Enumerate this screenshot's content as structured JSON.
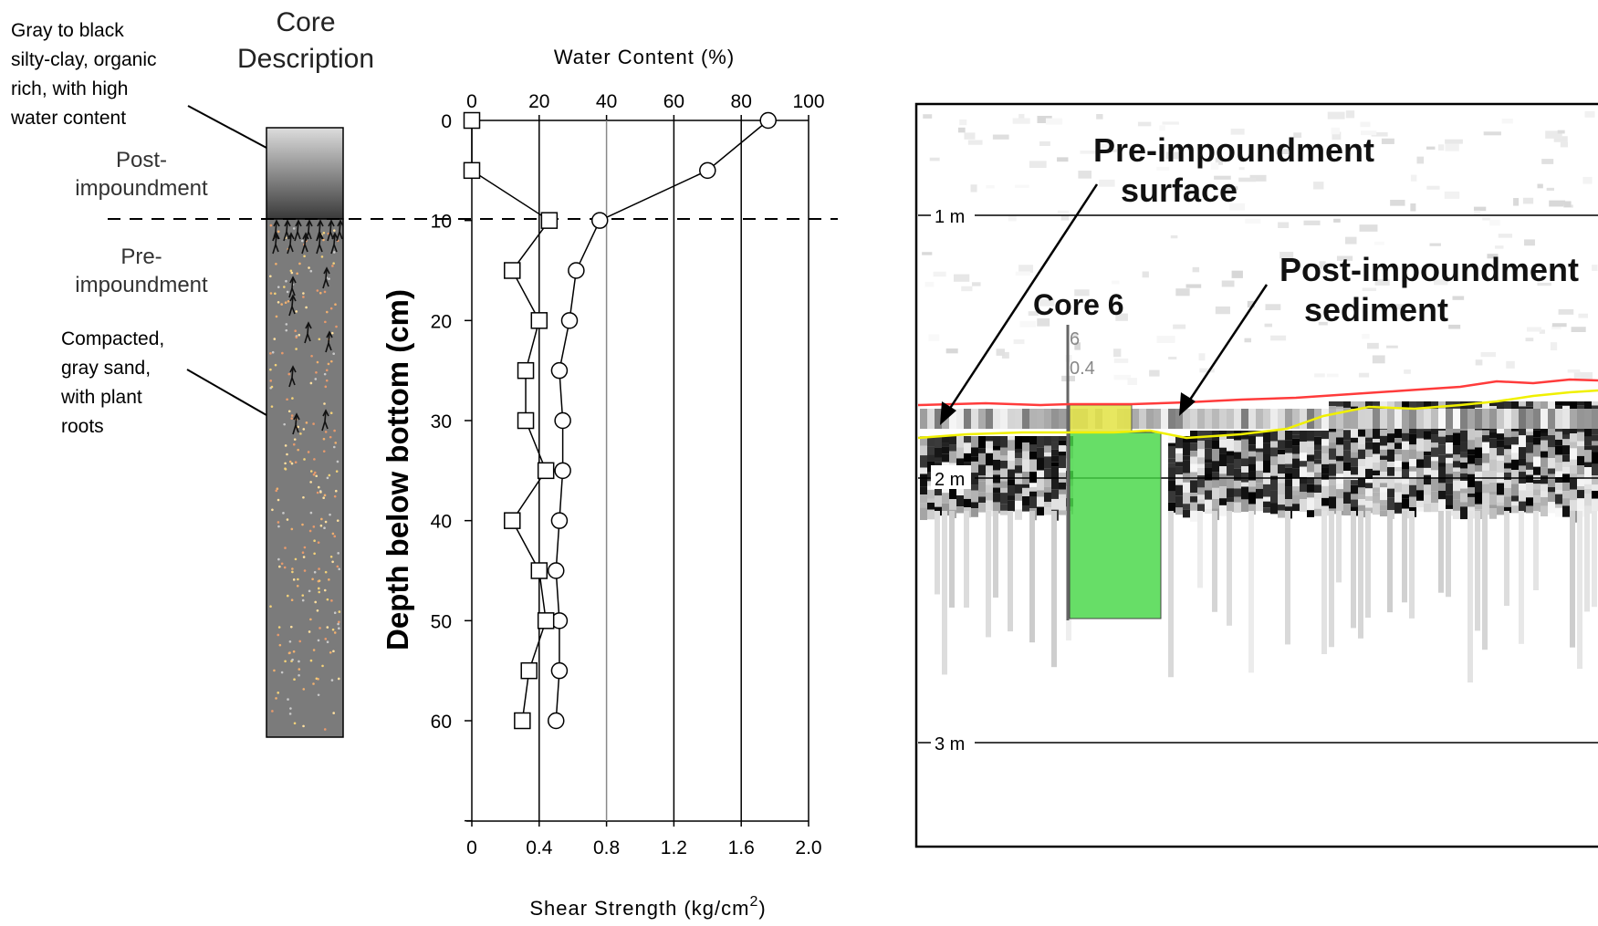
{
  "core": {
    "title_line1": "Core",
    "title_line2": "Description",
    "callout_top": [
      "Gray to black",
      "silty-clay, organic",
      "rich, with high",
      "water content"
    ],
    "label_post": [
      "Post-",
      "impoundment"
    ],
    "label_pre": [
      "Pre-",
      "impoundment"
    ],
    "callout_bottom": [
      "Compacted,",
      "gray sand,",
      "with plant",
      "roots"
    ]
  },
  "profile": {
    "top_axis_title": "Water Content (%)",
    "top_ticks": [
      "0",
      "20",
      "40",
      "60",
      "80",
      "100"
    ],
    "bottom_axis_title": "Shear Strength (kg/cm",
    "bottom_axis_superscript": "2",
    "bottom_axis_title_close": ")",
    "bottom_ticks": [
      "0",
      "0.4",
      "0.8",
      "1.2",
      "1.6",
      "2.0"
    ],
    "y_axis_title": "Depth below bottom (cm)",
    "y_ticks": [
      "0",
      "10",
      "20",
      "30",
      "40",
      "50",
      "60"
    ]
  },
  "chart_data": {
    "type": "line",
    "y_axis": {
      "title": "Depth below bottom (cm)",
      "range": [
        0,
        70
      ],
      "inverted": true
    },
    "x_axis_top": {
      "title": "Water Content (%)",
      "range": [
        0,
        100
      ]
    },
    "x_axis_bottom": {
      "title": "Shear Strength (kg/cm2)",
      "range": [
        0,
        2.0
      ]
    },
    "interface_depth": 10,
    "series": [
      {
        "marker": "circle",
        "axis": "Water Content (%)",
        "depth": [
          0,
          5,
          10,
          15,
          20,
          25,
          30,
          35,
          40,
          45,
          50,
          55,
          60
        ],
        "values": [
          88,
          70,
          38,
          31,
          29,
          26,
          27,
          27,
          26,
          25,
          26,
          26,
          25
        ]
      },
      {
        "marker": "square",
        "axis": "Shear Strength (kg/cm2)",
        "depth": [
          0,
          5,
          10,
          15,
          20,
          25,
          30,
          35,
          40,
          45,
          50,
          55,
          60
        ],
        "values": [
          0.0,
          0.0,
          0.46,
          0.24,
          0.4,
          0.32,
          0.32,
          0.44,
          0.24,
          0.4,
          0.44,
          0.34,
          0.3
        ]
      }
    ]
  },
  "gpr": {
    "label_pre_surface": [
      "Pre-impoundment",
      "surface"
    ],
    "label_post_sediment": [
      "Post-impoundment",
      "sediment"
    ],
    "core_label": "Core 6",
    "core_small_1": "6",
    "core_small_2": "0.4",
    "depth_markers": [
      "1 m",
      "2 m",
      "3 m"
    ],
    "colors": {
      "post_surface_line": "#ff3b3b",
      "pre_surface_line": "#f0f000",
      "core_post_box": "#e6e650",
      "core_pre_box": "#46d746"
    }
  }
}
